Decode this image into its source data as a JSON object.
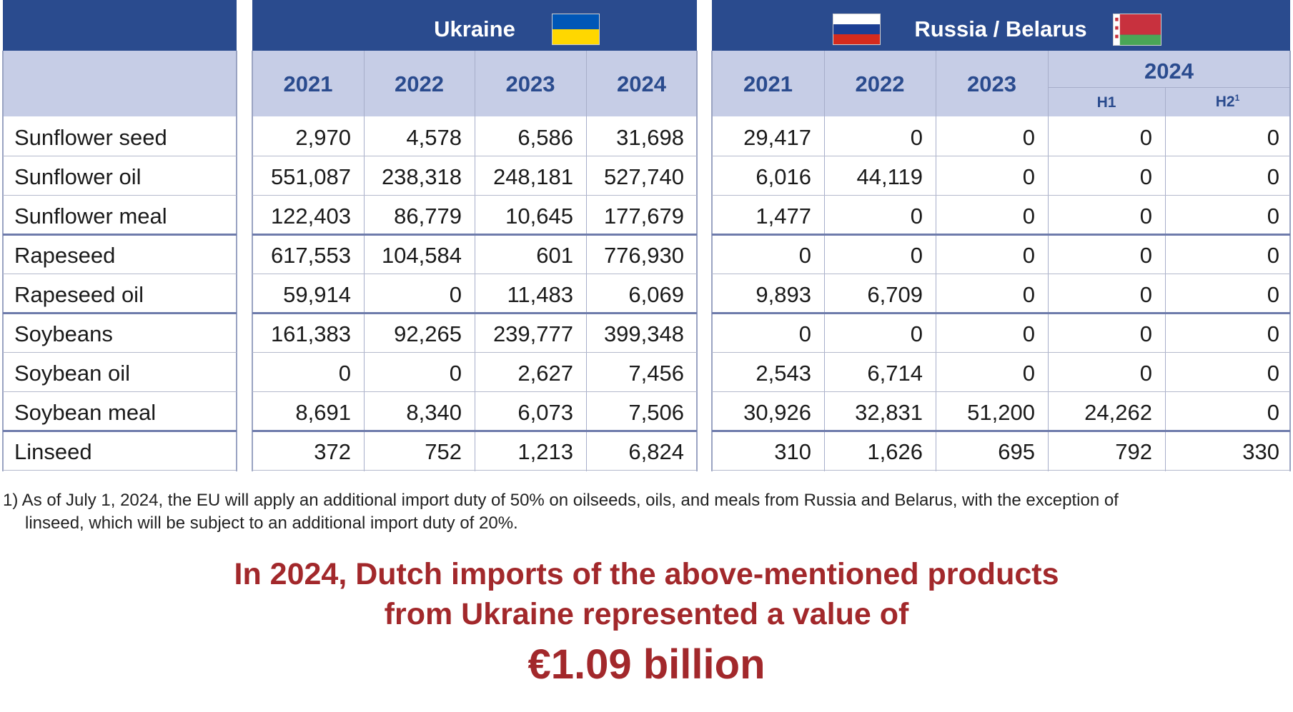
{
  "table": {
    "ukraine": {
      "title": "Ukraine",
      "flag_icon": "ukraine-flag-icon",
      "flag_colors": [
        "#0057b7",
        "#ffd700"
      ],
      "years": [
        "2021",
        "2022",
        "2023",
        "2024"
      ]
    },
    "russia_belarus": {
      "title": "Russia / Belarus",
      "flag_icons": [
        "russia-flag-icon",
        "belarus-flag-icon"
      ],
      "russia_colors": [
        "#ffffff",
        "#1c3f94",
        "#d52b1e"
      ],
      "belarus_colors": [
        "#c8313e",
        "#4aa657",
        "#ffffff"
      ],
      "years": [
        "2021",
        "2022",
        "2023"
      ],
      "split_year": "2024",
      "halves": [
        "H1",
        "H2"
      ],
      "h2_footnote_mark": "1"
    },
    "rows": [
      {
        "product": "Sunflower seed",
        "ukraine": [
          "2,970",
          "4,578",
          "6,586",
          "31,698"
        ],
        "russia_belarus": [
          "29,417",
          "0",
          "0",
          "0",
          "0"
        ]
      },
      {
        "product": "Sunflower oil",
        "ukraine": [
          "551,087",
          "238,318",
          "248,181",
          "527,740"
        ],
        "russia_belarus": [
          "6,016",
          "44,119",
          "0",
          "0",
          "0"
        ]
      },
      {
        "product": "Sunflower meal",
        "ukraine": [
          "122,403",
          "86,779",
          "10,645",
          "177,679"
        ],
        "russia_belarus": [
          "1,477",
          "0",
          "0",
          "0",
          "0"
        ]
      },
      {
        "product": "Rapeseed",
        "ukraine": [
          "617,553",
          "104,584",
          "601",
          "776,930"
        ],
        "russia_belarus": [
          "0",
          "0",
          "0",
          "0",
          "0"
        ]
      },
      {
        "product": "Rapeseed oil",
        "ukraine": [
          "59,914",
          "0",
          "11,483",
          "6,069"
        ],
        "russia_belarus": [
          "9,893",
          "6,709",
          "0",
          "0",
          "0"
        ]
      },
      {
        "product": "Soybeans",
        "ukraine": [
          "161,383",
          "92,265",
          "239,777",
          "399,348"
        ],
        "russia_belarus": [
          "0",
          "0",
          "0",
          "0",
          "0"
        ]
      },
      {
        "product": "Soybean oil",
        "ukraine": [
          "0",
          "0",
          "2,627",
          "7,456"
        ],
        "russia_belarus": [
          "2,543",
          "6,714",
          "0",
          "0",
          "0"
        ]
      },
      {
        "product": "Soybean meal",
        "ukraine": [
          "8,691",
          "8,340",
          "6,073",
          "7,506"
        ],
        "russia_belarus": [
          "30,926",
          "32,831",
          "51,200",
          "24,262",
          "0"
        ]
      },
      {
        "product": "Linseed",
        "ukraine": [
          "372",
          "752",
          "1,213",
          "6,824"
        ],
        "russia_belarus": [
          "310",
          "1,626",
          "695",
          "792",
          "330"
        ]
      }
    ]
  },
  "footnote": {
    "line1": "1) As of July 1, 2024, the EU will apply an additional import duty of 50% on oilseeds, oils, and meals from Russia and Belarus, with the exception of",
    "line2": "linseed, which will be subject to an additional import duty of 20%."
  },
  "headline": {
    "line1": "In 2024, Dutch imports of the above-mentioned products",
    "line2": "from Ukraine represented a value of",
    "value": "€1.09 billion",
    "color": "#a2282b"
  }
}
